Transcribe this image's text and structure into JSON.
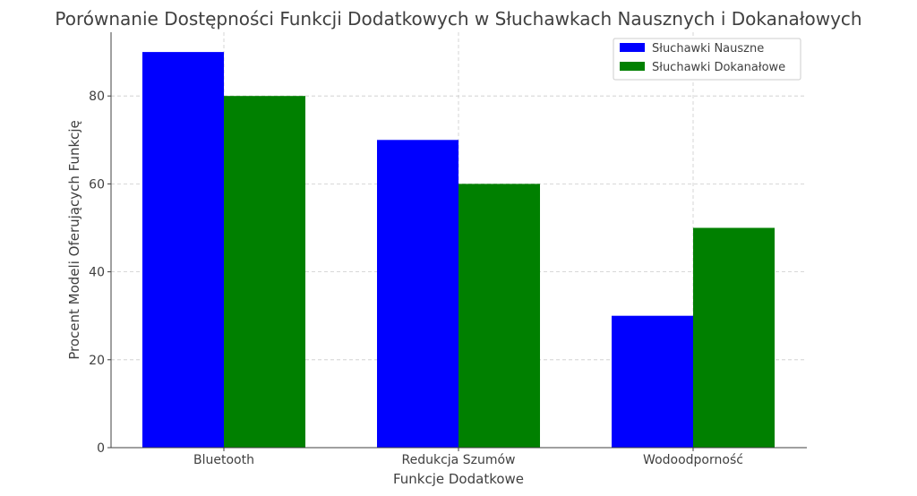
{
  "chart_data": {
    "type": "bar",
    "title": "Porównanie Dostępności Funkcji Dodatkowych w Słuchawkach Nausznych i Dokanałowych",
    "xlabel": "Funkcje Dodatkowe",
    "ylabel": "Procent Modeli Oferujących Funkcję",
    "categories": [
      "Bluetooth",
      "Redukcja Szumów",
      "Wodoodporność"
    ],
    "series": [
      {
        "name": "Słuchawki Nauszne",
        "values": [
          90,
          70,
          30
        ],
        "color": "#0000ff"
      },
      {
        "name": "Słuchawki Dokanałowe",
        "values": [
          80,
          60,
          50
        ],
        "color": "#008000"
      }
    ],
    "ylim": [
      0,
      94.5
    ],
    "yticks": [
      0,
      20,
      40,
      60,
      80
    ],
    "grid": true,
    "legend_position": "top-right"
  }
}
